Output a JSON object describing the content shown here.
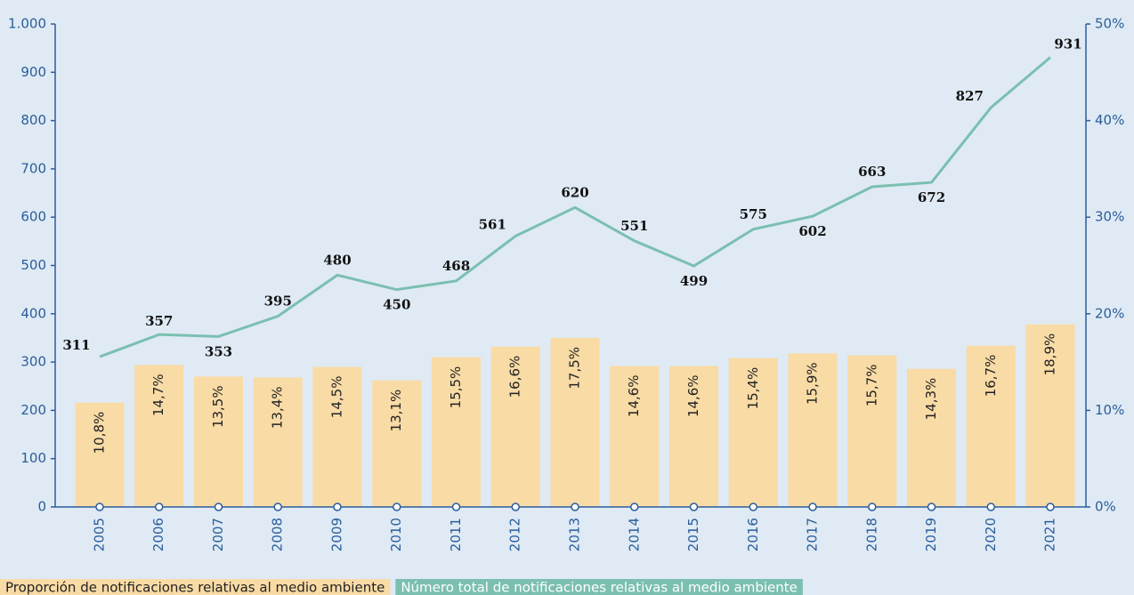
{
  "chart_data": {
    "type": "bar",
    "categories": [
      "2005",
      "2006",
      "2007",
      "2008",
      "2009",
      "2010",
      "2011",
      "2012",
      "2013",
      "2014",
      "2015",
      "2016",
      "2017",
      "2018",
      "2019",
      "2020",
      "2021"
    ],
    "series": [
      {
        "name": "Proporción de notificaciones relativas al medio ambiente",
        "type": "bar",
        "axis": "y2",
        "color": "#f9dba6",
        "values": [
          10.8,
          14.7,
          13.5,
          13.4,
          14.5,
          13.1,
          15.5,
          16.6,
          17.5,
          14.6,
          14.6,
          15.4,
          15.9,
          15.7,
          14.3,
          16.7,
          18.9
        ],
        "value_labels": [
          "10,8%",
          "14,7%",
          "13,5%",
          "13,4%",
          "14,5%",
          "13,1%",
          "15,5%",
          "16,6%",
          "17,5%",
          "14,6%",
          "14,6%",
          "15,4%",
          "15,9%",
          "15,7%",
          "14,3%",
          "16,7%",
          "18,9%"
        ]
      },
      {
        "name": "Número total de notificaciones relativas al medio ambiente",
        "type": "line",
        "color": "#7bbfb1",
        "values": [
          311,
          357,
          353,
          395,
          480,
          450,
          468,
          561,
          620,
          551,
          499,
          575,
          602,
          663,
          672,
          827,
          931
        ]
      }
    ],
    "ylim": [
      0,
      1000
    ],
    "yticks": [
      0,
      100,
      200,
      300,
      400,
      500,
      600,
      700,
      800,
      900,
      {
        "value": 1000,
        "label": "1.000"
      }
    ],
    "y2lim": [
      0,
      50
    ],
    "y2ticks": [
      {
        "value": 0,
        "label": "0%"
      },
      {
        "value": 10,
        "label": "10%"
      },
      {
        "value": 20,
        "label": "20%"
      },
      {
        "value": 30,
        "label": "30%"
      },
      {
        "value": 40,
        "label": "40%"
      },
      {
        "value": 50,
        "label": "50%"
      }
    ]
  }
}
